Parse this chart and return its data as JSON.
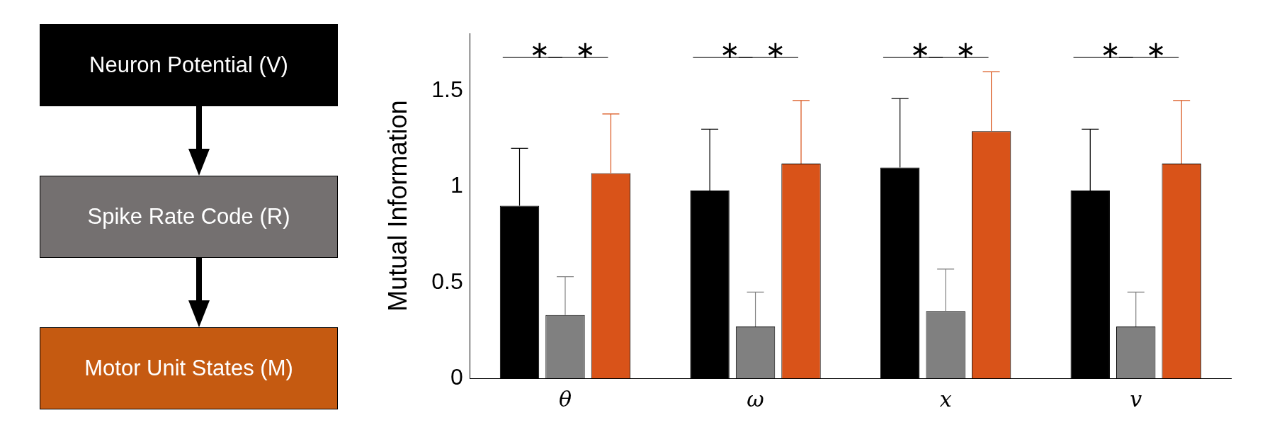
{
  "chart_data": [
    {
      "type": "other",
      "annotations": [
        "Neuron Potential (V)",
        "Spike Rate Code (R)",
        "Motor Unit States (M)"
      ],
      "colors": [
        "#000000",
        "#747070",
        "#c55a11"
      ]
    },
    {
      "type": "bar",
      "ylabel": "Mutual Information",
      "categories": [
        "θ",
        "ω",
        "x",
        "v"
      ],
      "series": [
        {
          "color": "#000000",
          "values": [
            0.9,
            0.98,
            1.1,
            0.98
          ],
          "errors": [
            [
              0.9,
              1.2
            ],
            [
              0.98,
              1.3
            ],
            [
              1.1,
              1.46
            ],
            [
              0.98,
              1.3
            ]
          ]
        },
        {
          "color": "#808080",
          "values": [
            0.33,
            0.27,
            0.35,
            0.27
          ],
          "errors": [
            [
              0.33,
              0.53
            ],
            [
              0.27,
              0.45
            ],
            [
              0.35,
              0.57
            ],
            [
              0.27,
              0.45
            ]
          ]
        },
        {
          "color": "#d95319",
          "values": [
            1.07,
            1.12,
            1.29,
            1.12
          ],
          "errors": [
            [
              1.07,
              1.38
            ],
            [
              1.12,
              1.45
            ],
            [
              1.29,
              1.6
            ],
            [
              1.12,
              1.45
            ]
          ]
        }
      ],
      "ylim": [
        0,
        1.8
      ],
      "yticks": [
        0,
        0.5,
        1,
        1.5
      ],
      "grid": false,
      "legend": false,
      "annotations": [
        "∗",
        "∗",
        "∗",
        "∗",
        "∗",
        "∗",
        "∗",
        "∗"
      ]
    }
  ]
}
